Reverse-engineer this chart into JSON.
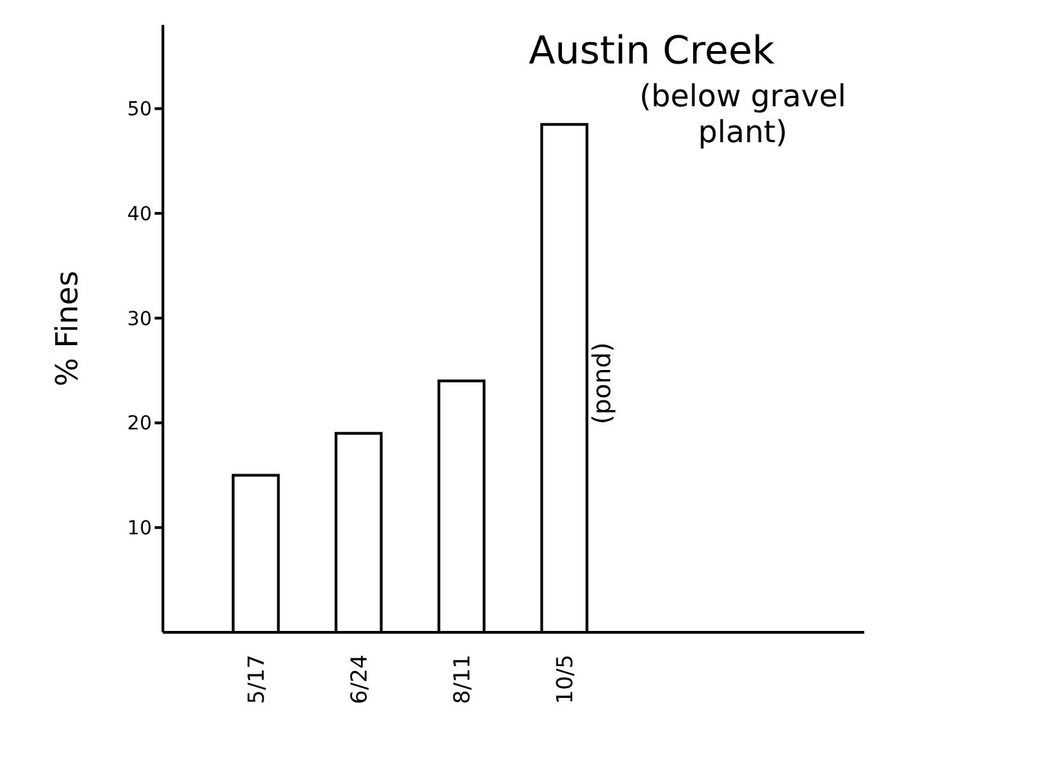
{
  "chart_data": {
    "type": "bar",
    "title": "Austin Creek",
    "subtitle": "(below gravel plant)",
    "ylabel": "% Fines",
    "categories": [
      "5/17",
      "6/24",
      "8/11",
      "10/5"
    ],
    "values": [
      15,
      19,
      24,
      48.5
    ],
    "color": "#ffffff",
    "ylim": [
      0,
      58
    ],
    "yticks": [
      10,
      20,
      30,
      40,
      50
    ],
    "annotations": [
      "(pond)"
    ],
    "grid": false,
    "legend": false
  }
}
